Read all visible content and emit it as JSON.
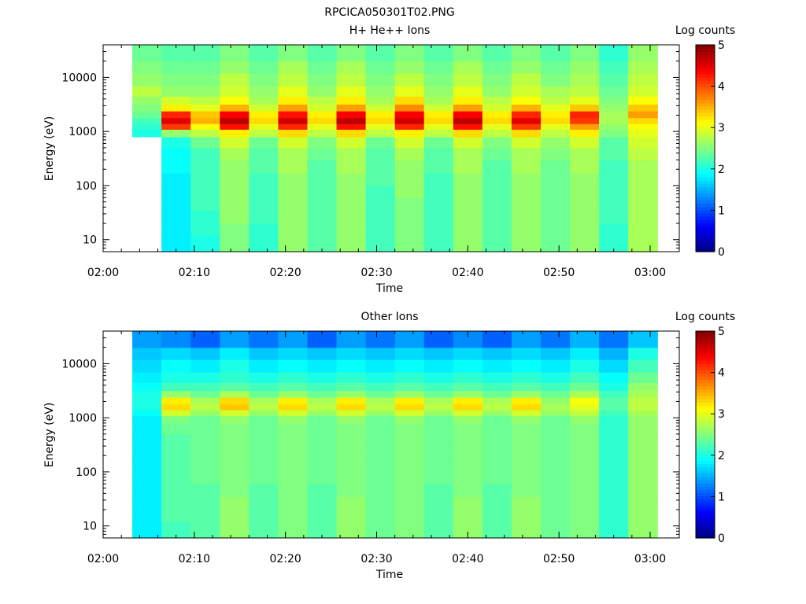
{
  "figure_title": "RPCICA050301T02.PNG",
  "chart_data": [
    {
      "type": "heatmap",
      "title": "H+ He++ Ions",
      "xlabel": "Time",
      "ylabel": "Energy (eV)",
      "colorbar_label": "Log counts",
      "x_ticks": [
        "02:00",
        "02:10",
        "02:20",
        "02:30",
        "02:40",
        "02:50",
        "03:00"
      ],
      "x_range": [
        "02:00",
        "03:00"
      ],
      "y_ticks": [
        10,
        100,
        1000,
        10000
      ],
      "y_range": [
        6,
        40000
      ],
      "y_scale": "log",
      "colorbar_ticks": [
        0,
        1,
        2,
        3,
        4,
        5
      ],
      "colorbar_range": [
        0,
        5
      ],
      "colormap": "jet",
      "columns_start": [
        "02:03:12",
        "02:06:24",
        "02:09:36",
        "02:12:48",
        "02:16:00",
        "02:19:12",
        "02:22:24",
        "02:25:36",
        "02:28:48",
        "02:32:00",
        "02:35:12",
        "02:38:24",
        "02:41:36",
        "02:44:48",
        "02:48:00",
        "02:51:12",
        "02:54:24",
        "02:57:36"
      ],
      "columns_end": "03:00:48",
      "energy_bands_ev": [
        6,
        8,
        12,
        20,
        35,
        60,
        100,
        170,
        300,
        500,
        800,
        1100,
        1400,
        1800,
        2400,
        3200,
        4500,
        7000,
        12000,
        20000,
        40000
      ],
      "values": [
        [
          null,
          null,
          null,
          null,
          null,
          null,
          null,
          null,
          null,
          null,
          2.0,
          2.1,
          2.2,
          2.4,
          2.5,
          2.6,
          2.8,
          2.6,
          2.5,
          2.4
        ],
        [
          1.8,
          1.8,
          1.8,
          1.8,
          1.8,
          1.8,
          1.8,
          1.9,
          1.9,
          2.0,
          2.6,
          4.1,
          4.5,
          4.2,
          3.2,
          2.9,
          2.6,
          2.5,
          2.4,
          2.3
        ],
        [
          2.0,
          2.0,
          2.1,
          2.1,
          2.2,
          2.2,
          2.2,
          2.2,
          2.2,
          2.4,
          2.8,
          3.1,
          3.5,
          3.4,
          3.0,
          2.8,
          2.6,
          2.5,
          2.4,
          2.3
        ],
        [
          2.5,
          2.5,
          2.5,
          2.6,
          2.6,
          2.6,
          2.6,
          2.6,
          2.7,
          2.9,
          3.2,
          4.3,
          4.7,
          4.4,
          3.5,
          3.1,
          2.9,
          2.8,
          2.6,
          2.5
        ],
        [
          2.1,
          2.1,
          2.1,
          2.2,
          2.2,
          2.2,
          2.2,
          2.3,
          2.3,
          2.4,
          2.8,
          3.0,
          3.3,
          3.2,
          2.9,
          2.7,
          2.6,
          2.5,
          2.4,
          2.3
        ],
        [
          2.6,
          2.6,
          2.6,
          2.6,
          2.6,
          2.6,
          2.6,
          2.7,
          2.7,
          2.9,
          3.3,
          4.2,
          4.6,
          4.3,
          3.6,
          3.2,
          3.0,
          2.8,
          2.7,
          2.5
        ],
        [
          2.3,
          2.3,
          2.3,
          2.3,
          2.3,
          2.3,
          2.3,
          2.3,
          2.4,
          2.5,
          2.8,
          3.0,
          3.3,
          3.2,
          2.9,
          2.8,
          2.6,
          2.5,
          2.4,
          2.3
        ],
        [
          2.6,
          2.6,
          2.6,
          2.6,
          2.6,
          2.6,
          2.6,
          2.7,
          2.7,
          2.9,
          3.3,
          4.3,
          4.7,
          4.4,
          3.6,
          3.2,
          3.0,
          2.8,
          2.7,
          2.5
        ],
        [
          2.2,
          2.2,
          2.2,
          2.2,
          2.2,
          2.2,
          2.3,
          2.3,
          2.3,
          2.4,
          2.8,
          3.0,
          3.3,
          3.2,
          2.9,
          2.7,
          2.6,
          2.5,
          2.4,
          2.3
        ],
        [
          2.5,
          2.5,
          2.5,
          2.5,
          2.5,
          2.6,
          2.6,
          2.6,
          2.7,
          2.9,
          3.2,
          4.2,
          4.6,
          4.4,
          3.7,
          3.3,
          3.0,
          2.8,
          2.6,
          2.5
        ],
        [
          2.2,
          2.2,
          2.2,
          2.2,
          2.2,
          2.2,
          2.2,
          2.3,
          2.3,
          2.4,
          2.8,
          3.0,
          3.3,
          3.2,
          2.9,
          2.7,
          2.6,
          2.5,
          2.4,
          2.3
        ],
        [
          2.6,
          2.6,
          2.6,
          2.6,
          2.6,
          2.6,
          2.6,
          2.7,
          2.7,
          2.9,
          3.3,
          4.3,
          4.7,
          4.4,
          3.6,
          3.2,
          3.0,
          2.8,
          2.7,
          2.5
        ],
        [
          2.3,
          2.3,
          2.3,
          2.3,
          2.3,
          2.3,
          2.3,
          2.3,
          2.4,
          2.5,
          2.8,
          3.0,
          3.3,
          3.2,
          2.9,
          2.8,
          2.6,
          2.5,
          2.4,
          2.3
        ],
        [
          2.6,
          2.6,
          2.6,
          2.6,
          2.6,
          2.6,
          2.6,
          2.7,
          2.7,
          2.9,
          3.3,
          4.1,
          4.5,
          4.2,
          3.5,
          3.1,
          2.9,
          2.8,
          2.6,
          2.5
        ],
        [
          2.4,
          2.4,
          2.4,
          2.4,
          2.4,
          2.4,
          2.4,
          2.4,
          2.5,
          2.6,
          2.8,
          3.0,
          3.3,
          3.2,
          3.0,
          2.8,
          2.7,
          2.5,
          2.4,
          2.3
        ],
        [
          2.6,
          2.6,
          2.6,
          2.6,
          2.6,
          2.6,
          2.6,
          2.7,
          2.7,
          2.9,
          3.2,
          3.6,
          4.1,
          4.2,
          3.4,
          3.0,
          2.8,
          2.7,
          2.6,
          2.5
        ],
        [
          2.1,
          2.1,
          2.1,
          2.2,
          2.2,
          2.2,
          2.2,
          2.2,
          2.3,
          2.3,
          2.5,
          2.6,
          2.7,
          2.7,
          2.6,
          2.5,
          2.4,
          2.3,
          2.2,
          2.1
        ],
        [
          2.7,
          2.7,
          2.7,
          2.7,
          2.7,
          2.7,
          2.7,
          2.7,
          2.8,
          2.9,
          3.0,
          3.1,
          3.3,
          3.6,
          3.4,
          3.1,
          2.9,
          2.8,
          2.7,
          2.6
        ]
      ]
    },
    {
      "type": "heatmap",
      "title": "Other Ions",
      "xlabel": "Time",
      "ylabel": "Energy (eV)",
      "colorbar_label": "Log counts",
      "x_ticks": [
        "02:00",
        "02:10",
        "02:20",
        "02:30",
        "02:40",
        "02:50",
        "03:00"
      ],
      "x_range": [
        "02:00",
        "03:00"
      ],
      "y_ticks": [
        10,
        100,
        1000,
        10000
      ],
      "y_range": [
        6,
        40000
      ],
      "y_scale": "log",
      "colorbar_ticks": [
        0,
        1,
        2,
        3,
        4,
        5
      ],
      "colorbar_range": [
        0,
        5
      ],
      "colormap": "jet",
      "columns_start": [
        "02:03:12",
        "02:06:24",
        "02:09:36",
        "02:12:48",
        "02:16:00",
        "02:19:12",
        "02:22:24",
        "02:25:36",
        "02:28:48",
        "02:32:00",
        "02:35:12",
        "02:38:24",
        "02:41:36",
        "02:44:48",
        "02:48:00",
        "02:51:12",
        "02:54:24",
        "02:57:36"
      ],
      "columns_end": "03:00:48",
      "energy_bands_ev": [
        6,
        8,
        12,
        20,
        35,
        60,
        100,
        170,
        300,
        500,
        800,
        1100,
        1400,
        1800,
        2400,
        3200,
        4500,
        7000,
        12000,
        20000,
        40000
      ],
      "values": [
        [
          1.8,
          1.8,
          1.8,
          1.8,
          1.8,
          1.8,
          1.8,
          1.8,
          1.8,
          1.8,
          1.8,
          1.9,
          2.0,
          2.0,
          2.0,
          1.9,
          1.8,
          1.7,
          1.6,
          1.4
        ],
        [
          2.2,
          2.2,
          2.3,
          2.3,
          2.3,
          2.3,
          2.3,
          2.3,
          2.3,
          2.4,
          2.5,
          2.9,
          3.3,
          3.2,
          2.6,
          2.2,
          2.0,
          1.9,
          1.7,
          1.3
        ],
        [
          2.3,
          2.3,
          2.3,
          2.3,
          2.3,
          2.4,
          2.4,
          2.4,
          2.4,
          2.4,
          2.4,
          2.6,
          2.8,
          2.7,
          2.4,
          2.2,
          2.0,
          1.8,
          1.6,
          1.1
        ],
        [
          2.6,
          2.6,
          2.6,
          2.6,
          2.5,
          2.5,
          2.5,
          2.5,
          2.5,
          2.5,
          2.6,
          2.9,
          3.4,
          3.3,
          2.7,
          2.3,
          2.1,
          2.0,
          1.8,
          1.4
        ],
        [
          2.3,
          2.3,
          2.3,
          2.3,
          2.3,
          2.4,
          2.4,
          2.4,
          2.4,
          2.4,
          2.4,
          2.6,
          2.8,
          2.7,
          2.4,
          2.2,
          2.0,
          1.8,
          1.6,
          1.2
        ],
        [
          2.5,
          2.5,
          2.5,
          2.5,
          2.5,
          2.5,
          2.5,
          2.5,
          2.5,
          2.5,
          2.6,
          2.9,
          3.3,
          3.2,
          2.6,
          2.3,
          2.1,
          1.9,
          1.7,
          1.4
        ],
        [
          2.3,
          2.3,
          2.3,
          2.3,
          2.3,
          2.4,
          2.4,
          2.4,
          2.4,
          2.4,
          2.4,
          2.6,
          2.8,
          2.7,
          2.4,
          2.2,
          2.0,
          1.8,
          1.6,
          1.1
        ],
        [
          2.6,
          2.6,
          2.6,
          2.6,
          2.5,
          2.5,
          2.5,
          2.5,
          2.5,
          2.5,
          2.6,
          2.9,
          3.3,
          3.2,
          2.6,
          2.3,
          2.1,
          1.9,
          1.7,
          1.4
        ],
        [
          2.4,
          2.4,
          2.4,
          2.4,
          2.4,
          2.4,
          2.4,
          2.4,
          2.4,
          2.4,
          2.4,
          2.6,
          2.8,
          2.7,
          2.4,
          2.2,
          2.0,
          1.8,
          1.6,
          1.2
        ],
        [
          2.5,
          2.5,
          2.5,
          2.5,
          2.5,
          2.5,
          2.5,
          2.5,
          2.5,
          2.5,
          2.6,
          2.9,
          3.3,
          3.2,
          2.6,
          2.3,
          2.1,
          1.9,
          1.7,
          1.4
        ],
        [
          2.3,
          2.3,
          2.3,
          2.3,
          2.3,
          2.4,
          2.4,
          2.4,
          2.4,
          2.4,
          2.4,
          2.6,
          2.8,
          2.7,
          2.4,
          2.2,
          2.0,
          1.8,
          1.6,
          1.1
        ],
        [
          2.6,
          2.6,
          2.6,
          2.6,
          2.5,
          2.5,
          2.5,
          2.5,
          2.5,
          2.5,
          2.6,
          2.9,
          3.3,
          3.2,
          2.6,
          2.3,
          2.1,
          1.9,
          1.7,
          1.3
        ],
        [
          2.3,
          2.3,
          2.3,
          2.3,
          2.3,
          2.4,
          2.4,
          2.4,
          2.4,
          2.4,
          2.4,
          2.6,
          2.8,
          2.7,
          2.4,
          2.2,
          2.0,
          1.8,
          1.6,
          1.1
        ],
        [
          2.6,
          2.6,
          2.6,
          2.6,
          2.5,
          2.5,
          2.5,
          2.5,
          2.5,
          2.5,
          2.6,
          2.9,
          3.3,
          3.2,
          2.6,
          2.3,
          2.1,
          1.9,
          1.7,
          1.4
        ],
        [
          2.4,
          2.4,
          2.4,
          2.4,
          2.4,
          2.4,
          2.4,
          2.4,
          2.4,
          2.4,
          2.4,
          2.6,
          2.7,
          2.6,
          2.4,
          2.2,
          2.0,
          1.8,
          1.6,
          1.2
        ],
        [
          2.5,
          2.5,
          2.5,
          2.5,
          2.5,
          2.5,
          2.5,
          2.5,
          2.5,
          2.5,
          2.6,
          2.8,
          3.0,
          3.1,
          2.7,
          2.4,
          2.2,
          2.0,
          1.8,
          1.5
        ],
        [
          2.1,
          2.1,
          2.1,
          2.1,
          2.1,
          2.1,
          2.1,
          2.1,
          2.1,
          2.1,
          2.1,
          2.2,
          2.3,
          2.3,
          2.2,
          2.0,
          1.9,
          1.7,
          1.5,
          1.2
        ],
        [
          2.6,
          2.6,
          2.6,
          2.6,
          2.6,
          2.6,
          2.6,
          2.6,
          2.6,
          2.6,
          2.6,
          2.7,
          2.8,
          2.8,
          2.7,
          2.6,
          2.4,
          2.2,
          2.0,
          1.6
        ]
      ]
    }
  ]
}
